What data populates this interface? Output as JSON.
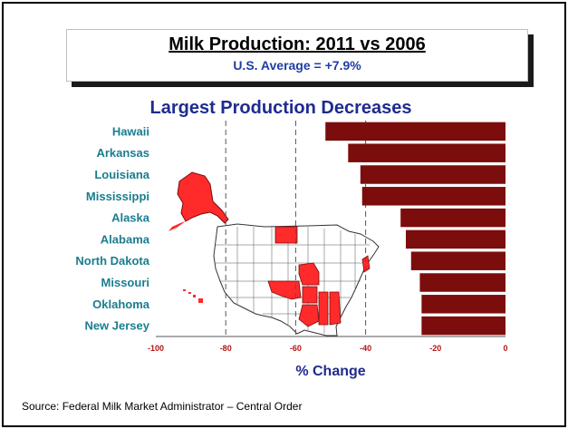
{
  "header": {
    "title": "Milk Production: 2011 vs 2006",
    "subtitle": "U.S. Average = +7.9%"
  },
  "source_note": "Source: Federal Milk Market Administrator – Central Order",
  "chart_data": {
    "type": "bar",
    "orientation": "horizontal",
    "title": "Largest Production Decreases",
    "xlabel": "% Change",
    "ylabel": "",
    "categories": [
      "Hawaii",
      "Arkansas",
      "Louisiana",
      "Mississippi",
      "Alaska",
      "Alabama",
      "North Dakota",
      "Missouri",
      "Oklahoma",
      "New Jersey"
    ],
    "values": [
      -51.5,
      -45,
      -41.5,
      -41,
      -30,
      -28.5,
      -27,
      -24.5,
      -24,
      -24
    ],
    "xlim": [
      -100,
      0
    ],
    "xticks": [
      -100,
      -80,
      -60,
      -40,
      -20,
      0
    ],
    "gridlines_at": [
      -80,
      -60,
      -40
    ],
    "grid_style": "dashed vertical",
    "bar_color": "#7b0d0d",
    "highlight_color": "#ff2a2a"
  }
}
